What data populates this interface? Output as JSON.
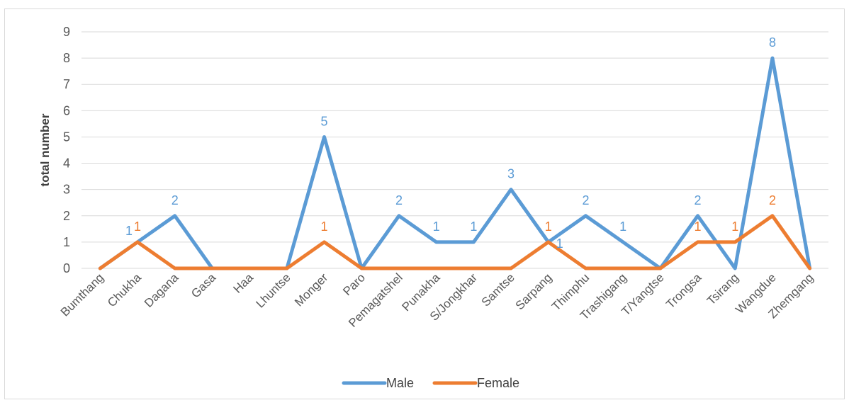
{
  "chart_data": {
    "type": "line",
    "title": "",
    "xlabel": "",
    "ylabel": "total number",
    "ylim": [
      0,
      9
    ],
    "yticks": [
      0,
      1,
      2,
      3,
      4,
      5,
      6,
      7,
      8,
      9
    ],
    "grid": true,
    "legend_position": "bottom",
    "categories": [
      "Bumthang",
      "Chukha",
      "Dagana",
      "Gasa",
      "Haa",
      "Lhuntse",
      "Monger",
      "Paro",
      "Pemagatshel",
      "Punakha",
      "S/Jongkhar",
      "Samtse",
      "Sarpang",
      "Thimphu",
      "Trashigang",
      "T/Yangtse",
      "Trongsa",
      "Tsirang",
      "Wangdue",
      "Zhemgang"
    ],
    "series": [
      {
        "name": "Male",
        "color": "#5b9bd5",
        "values": [
          0,
          1,
          2,
          0,
          0,
          0,
          5,
          0,
          2,
          1,
          1,
          3,
          1,
          2,
          1,
          0,
          2,
          0,
          8,
          0
        ],
        "data_labels": [
          null,
          "1",
          "2",
          null,
          null,
          null,
          "5",
          null,
          "2",
          "1",
          "1",
          "3",
          "1",
          "2",
          "1",
          null,
          "2",
          null,
          "8",
          null
        ]
      },
      {
        "name": "Female",
        "color": "#ed7d31",
        "values": [
          0,
          1,
          0,
          0,
          0,
          0,
          1,
          0,
          0,
          0,
          0,
          0,
          1,
          0,
          0,
          0,
          1,
          1,
          2,
          0
        ],
        "data_labels": [
          null,
          "1",
          null,
          null,
          null,
          null,
          "1",
          null,
          null,
          null,
          null,
          null,
          "1",
          null,
          null,
          null,
          "1",
          "1",
          "2",
          null
        ]
      }
    ]
  }
}
